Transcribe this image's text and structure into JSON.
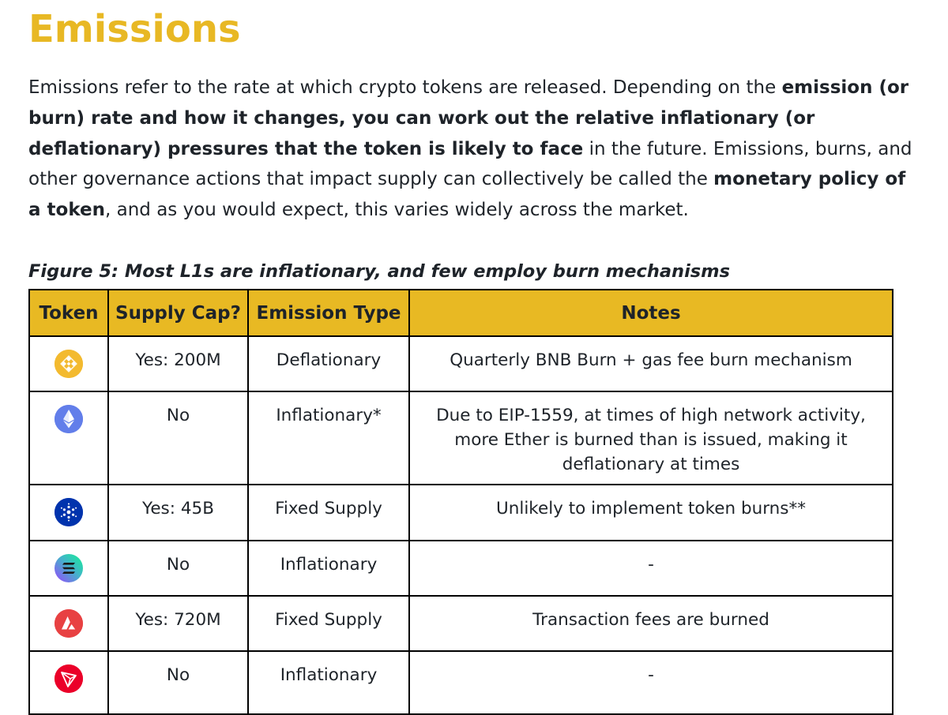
{
  "heading": "Emissions",
  "paragraph": {
    "segments": [
      {
        "text": "Emissions refer to the rate at which crypto tokens are released. Depending on the ",
        "bold": false
      },
      {
        "text": "emission (or burn) rate and how it changes, you can work out the relative inflationary (or deflationary) pressures that the token is likely to face",
        "bold": true
      },
      {
        "text": " in the future. Emissions, burns, and other governance actions that impact supply can collectively be called the ",
        "bold": false
      },
      {
        "text": "monetary policy of a token",
        "bold": true
      },
      {
        "text": ", and as you would expect, this varies widely across the market.",
        "bold": false
      }
    ]
  },
  "figure_caption": "Figure 5: Most L1s are inflationary, and few employ burn mechanisms",
  "table": {
    "headers": [
      "Token",
      "Supply Cap?",
      "Emission Type",
      "Notes"
    ],
    "rows": [
      {
        "icon": "bnb-icon",
        "icon_color": "#F3BA2F",
        "supply_cap": "Yes: 200M",
        "emission_type": "Deflationary",
        "notes": "Quarterly BNB Burn + gas fee burn mechanism"
      },
      {
        "icon": "ethereum-icon",
        "icon_color": "#627EEA",
        "supply_cap": "No",
        "emission_type": "Inflationary*",
        "notes": "Due to EIP-1559, at times of high network activity, more Ether is burned than is issued, making it deflationary at times"
      },
      {
        "icon": "cardano-icon",
        "icon_color": "#0033AD",
        "supply_cap": "Yes: 45B",
        "emission_type": "Fixed Supply",
        "notes": "Unlikely to implement token burns**"
      },
      {
        "icon": "solana-icon",
        "icon_color": "#9945FF",
        "supply_cap": "No",
        "emission_type": "Inflationary",
        "notes": "-"
      },
      {
        "icon": "avalanche-icon",
        "icon_color": "#E84142",
        "supply_cap": "Yes: 720M",
        "emission_type": "Fixed Supply",
        "notes": "Transaction fees are burned"
      },
      {
        "icon": "tron-icon",
        "icon_color": "#EB0029",
        "supply_cap": "No",
        "emission_type": "Inflationary",
        "notes": "-"
      }
    ]
  }
}
